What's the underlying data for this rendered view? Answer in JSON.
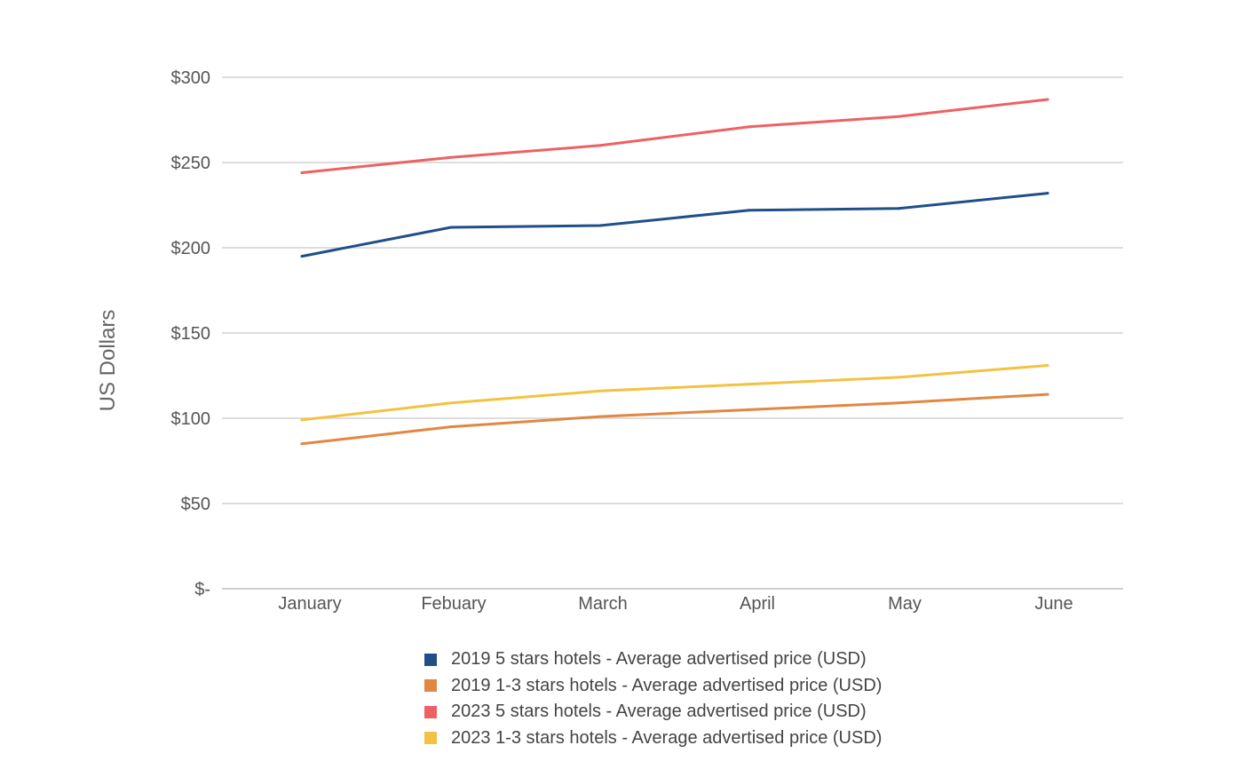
{
  "chart_data": {
    "type": "line",
    "title": "",
    "xlabel": "",
    "ylabel": "US Dollars",
    "categories": [
      "January",
      "Febuary",
      "March",
      "April",
      "May",
      "June"
    ],
    "y_ticks": [
      {
        "value": 0,
        "label": "$-"
      },
      {
        "value": 50,
        "label": "$50"
      },
      {
        "value": 100,
        "label": "$100"
      },
      {
        "value": 150,
        "label": "$150"
      },
      {
        "value": 200,
        "label": "$200"
      },
      {
        "value": 250,
        "label": "$250"
      },
      {
        "value": 300,
        "label": "$300"
      }
    ],
    "ylim": [
      0,
      300
    ],
    "grid": "horizontal",
    "legend_position": "bottom",
    "series": [
      {
        "name": "2019 5 stars hotels - Average advertised price (USD)",
        "color": "#1f4e89",
        "values": [
          195,
          212,
          213,
          222,
          223,
          232
        ]
      },
      {
        "name": "2019 1-3 stars hotels - Average advertised price (USD)",
        "color": "#e28743",
        "values": [
          85,
          95,
          101,
          105,
          109,
          114
        ]
      },
      {
        "name": "2023 5 stars hotels - Average advertised price (USD)",
        "color": "#ee6163",
        "values": [
          244,
          253,
          260,
          271,
          277,
          287
        ]
      },
      {
        "name": "2023 1-3 stars hotels - Average advertised price (USD)",
        "color": "#f4c242",
        "values": [
          99,
          109,
          116,
          120,
          124,
          131
        ]
      }
    ]
  }
}
